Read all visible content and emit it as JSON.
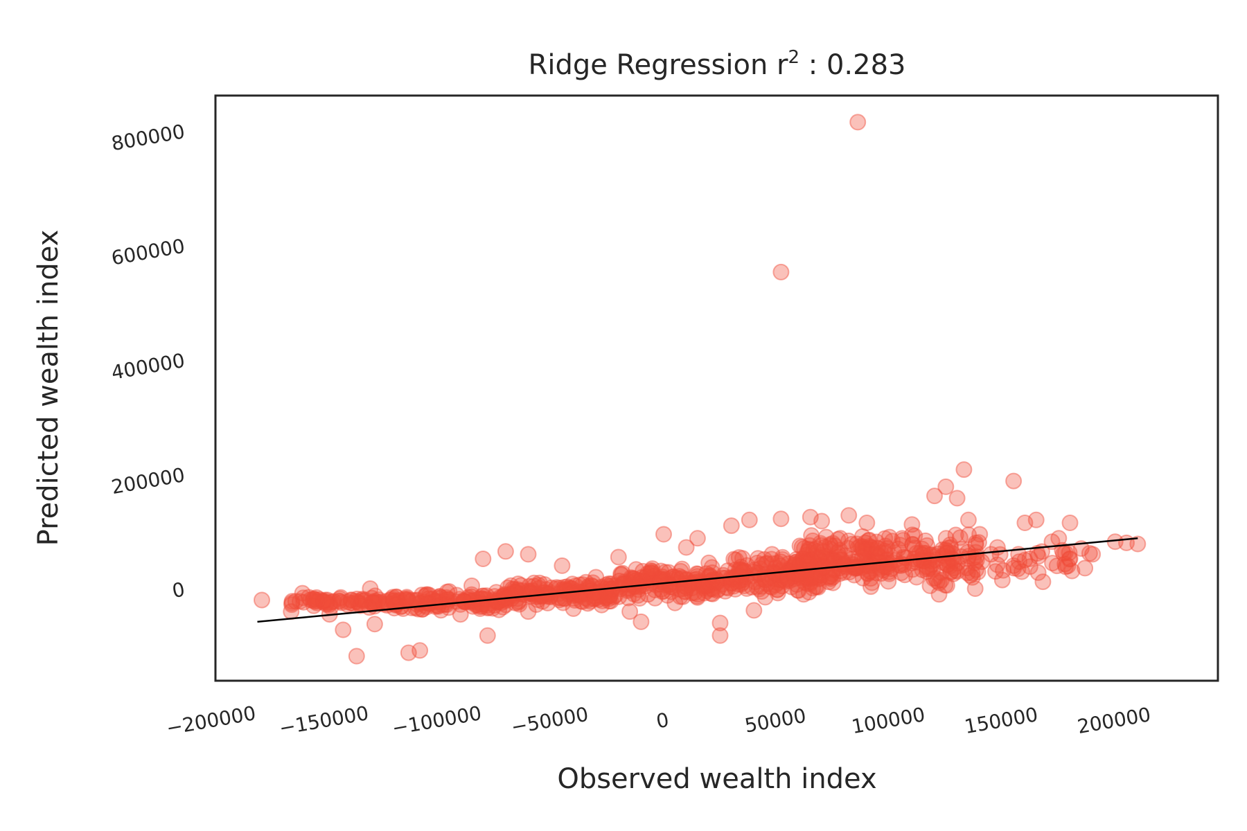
{
  "chart_data": {
    "type": "scatter",
    "title": "Ridge Regression r",
    "title_superscript": "2",
    "title_suffix": " : 0.283",
    "xlabel": "Observed wealth index",
    "ylabel": "Predicted wealth index",
    "xlim": [
      -200000,
      230000
    ],
    "ylim": [
      -150000,
      860000
    ],
    "xticks": [
      -200000,
      -150000,
      -100000,
      -50000,
      0,
      50000,
      100000,
      150000,
      200000
    ],
    "xtick_labels": [
      "−200000",
      "−150000",
      "−100000",
      "−50000",
      "0",
      "50000",
      "100000",
      "150000",
      "200000"
    ],
    "yticks": [
      0,
      200000,
      400000,
      600000,
      800000
    ],
    "ytick_labels": [
      "0",
      "200000",
      "400000",
      "600000",
      "800000"
    ],
    "grid": false,
    "point_color": "#f04c3a",
    "point_alpha": 0.35,
    "fit_line_color": "#000000",
    "fit_line": {
      "x": [
        -180000,
        210000
      ],
      "y": [
        -58000,
        88000
      ]
    },
    "points": [
      [
        86000,
        815000
      ],
      [
        52000,
        553000
      ],
      [
        133000,
        208000
      ],
      [
        155000,
        188000
      ],
      [
        125000,
        178000
      ],
      [
        120000,
        162000
      ],
      [
        130000,
        158000
      ],
      [
        -178000,
        -20000
      ],
      [
        -163000,
        -22000
      ],
      [
        -160000,
        -8000
      ],
      [
        -155000,
        -30000
      ],
      [
        -148000,
        -45000
      ],
      [
        -140000,
        -28000
      ],
      [
        -142000,
        -72000
      ],
      [
        -128000,
        -62000
      ],
      [
        -136000,
        -118000
      ],
      [
        -108000,
        -108000
      ],
      [
        -113000,
        -112000
      ],
      [
        -78000,
        -82000
      ],
      [
        -70000,
        65000
      ],
      [
        -80000,
        52000
      ],
      [
        -60000,
        60000
      ],
      [
        -10000,
        -58000
      ],
      [
        25000,
        -82000
      ],
      [
        25000,
        -60000
      ],
      [
        40000,
        -38000
      ],
      [
        45000,
        -15000
      ],
      [
        0,
        95000
      ],
      [
        10000,
        72000
      ],
      [
        15000,
        88000
      ],
      [
        30000,
        110000
      ],
      [
        38000,
        120000
      ],
      [
        52000,
        122000
      ],
      [
        65000,
        125000
      ],
      [
        70000,
        118000
      ],
      [
        82000,
        128000
      ],
      [
        90000,
        115000
      ],
      [
        110000,
        112000
      ],
      [
        135000,
        120000
      ],
      [
        160000,
        115000
      ],
      [
        165000,
        120000
      ],
      [
        180000,
        115000
      ],
      [
        175000,
        88000
      ],
      [
        172000,
        82000
      ],
      [
        185000,
        70000
      ],
      [
        168000,
        12000
      ],
      [
        200000,
        82000
      ],
      [
        210000,
        78000
      ],
      [
        140000,
        95000
      ],
      [
        145000,
        60000
      ],
      [
        147000,
        30000
      ],
      [
        150000,
        15000
      ],
      [
        128000,
        52000
      ],
      [
        115000,
        62000
      ],
      [
        95000,
        70000
      ],
      [
        100000,
        90000
      ],
      [
        80000,
        40000
      ],
      [
        75000,
        10000
      ],
      [
        62000,
        -10000
      ],
      [
        55000,
        18000
      ],
      [
        48000,
        60000
      ],
      [
        35000,
        30000
      ],
      [
        20000,
        45000
      ],
      [
        10000,
        15000
      ],
      [
        -5000,
        35000
      ],
      [
        -20000,
        55000
      ],
      [
        -30000,
        20000
      ],
      [
        -45000,
        40000
      ],
      [
        -55000,
        10000
      ],
      [
        -85000,
        5000
      ],
      [
        -95000,
        -5000
      ],
      [
        -120000,
        -15000
      ],
      [
        -130000,
        0
      ],
      [
        -150000,
        -20000
      ],
      [
        -165000,
        -40000
      ],
      [
        -100000,
        -30000
      ],
      [
        -90000,
        -45000
      ],
      [
        -60000,
        -40000
      ],
      [
        -40000,
        -35000
      ],
      [
        -25000,
        -15000
      ],
      [
        -15000,
        -40000
      ],
      [
        5000,
        -25000
      ],
      [
        15000,
        -10000
      ],
      [
        60000,
        40000
      ],
      [
        68000,
        65000
      ],
      [
        72000,
        90000
      ],
      [
        88000,
        55000
      ],
      [
        105000,
        40000
      ],
      [
        112000,
        20000
      ],
      [
        118000,
        5000
      ],
      [
        122000,
        -10000
      ],
      [
        130000,
        30000
      ],
      [
        138000,
        0
      ],
      [
        155000,
        40000
      ],
      [
        160000,
        50000
      ],
      [
        190000,
        60000
      ],
      [
        205000,
        80000
      ]
    ],
    "cloud_clusters": [
      {
        "xmin": -165000,
        "xmax": -120000,
        "ymin": -35000,
        "ymax": -10000,
        "n": 70
      },
      {
        "xmin": -120000,
        "xmax": -70000,
        "ymin": -40000,
        "ymax": -5000,
        "n": 130
      },
      {
        "xmin": -70000,
        "xmax": -20000,
        "ymin": -30000,
        "ymax": 15000,
        "n": 160
      },
      {
        "xmin": -20000,
        "xmax": 30000,
        "ymin": -20000,
        "ymax": 40000,
        "n": 170
      },
      {
        "xmin": 30000,
        "xmax": 70000,
        "ymin": -10000,
        "ymax": 60000,
        "n": 160
      },
      {
        "xmin": 60000,
        "xmax": 100000,
        "ymin": 0,
        "ymax": 95000,
        "n": 170
      },
      {
        "xmin": 100000,
        "xmax": 140000,
        "ymin": 0,
        "ymax": 100000,
        "n": 110
      },
      {
        "xmin": 140000,
        "xmax": 190000,
        "ymin": 20000,
        "ymax": 80000,
        "n": 30
      }
    ]
  }
}
